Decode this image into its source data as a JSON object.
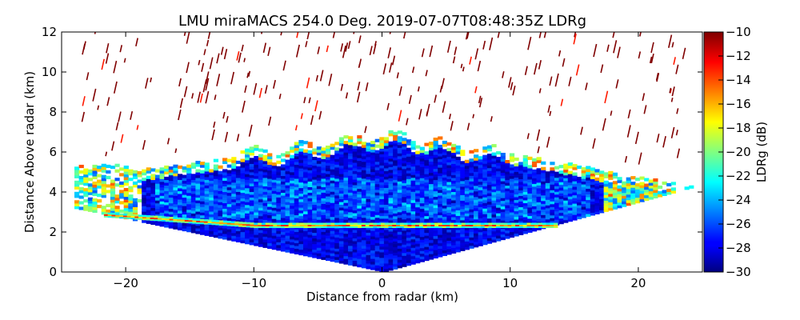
{
  "chart_data": {
    "type": "heatmap",
    "title": "LMU miraMACS 254.0 Deg. 2019-07-07T08:48:35Z  LDRg",
    "xlabel": "Distance from radar (km)",
    "ylabel": "Distance Above radar  (km)",
    "xlim": [
      -25,
      25
    ],
    "ylim": [
      0,
      12
    ],
    "x_ticks": [
      -20,
      -10,
      0,
      10,
      20
    ],
    "x_tick_labels": [
      "−20",
      "−10",
      "0",
      "10",
      "20"
    ],
    "y_ticks": [
      0,
      2,
      4,
      6,
      8,
      10,
      12
    ],
    "y_tick_labels": [
      "0",
      "2",
      "4",
      "6",
      "8",
      "10",
      "12"
    ],
    "colorbar": {
      "label": "LDRg (dB)",
      "range": [
        -30,
        -10
      ],
      "colormap": "jet",
      "ticks": [
        -30,
        -28,
        -26,
        -24,
        -22,
        -20,
        -18,
        -16,
        -14,
        -12,
        -10
      ],
      "tick_labels": [
        "−30",
        "−28",
        "−26",
        "−24",
        "−22",
        "−20",
        "−18",
        "−16",
        "−14",
        "−12",
        "−10"
      ]
    },
    "features": {
      "scan_lower_boundary": {
        "left": [
          -25,
          3.3
        ],
        "radar": [
          0,
          0
        ],
        "right": [
          24,
          4.2
        ]
      },
      "cloud_layer": {
        "x_range": [
          -24,
          24
        ],
        "bottom_km": 2.3,
        "top_km": 6.8,
        "ldr_db": -28
      },
      "melting_layer": {
        "altitude_km": 2.3,
        "ldr_db": -15
      },
      "noise_above_cloud": {
        "ldr_db": -10
      }
    }
  }
}
